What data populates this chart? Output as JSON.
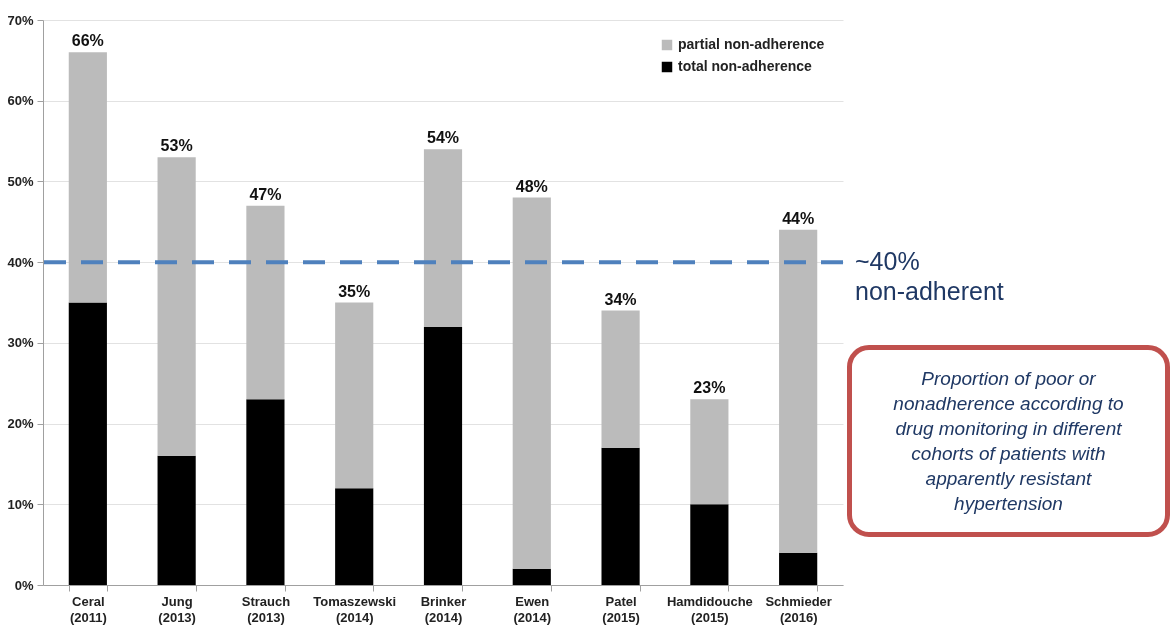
{
  "chart_data": {
    "type": "bar",
    "stacked": true,
    "categories": [
      "Ceral\n(2011)",
      "Jung\n(2013)",
      "Strauch\n(2013)",
      "Tomaszewski\n(2014)",
      "Brinker\n(2014)",
      "Ewen\n(2014)",
      "Patel\n(2015)",
      "Hamdidouche\n(2015)",
      "Schmieder\n(2016)"
    ],
    "series": [
      {
        "name": "total non-adherence",
        "color": "#000000",
        "values": [
          35,
          16,
          23,
          12,
          32,
          2,
          17,
          10,
          4
        ]
      },
      {
        "name": "partial non-adherence",
        "color": "#bbbbbb",
        "values": [
          31,
          37,
          24,
          23,
          22,
          46,
          17,
          13,
          40
        ]
      }
    ],
    "totals": [
      "66%",
      "53%",
      "47%",
      "35%",
      "54%",
      "48%",
      "34%",
      "23%",
      "44%"
    ],
    "ylim": [
      0,
      70
    ],
    "yticks": [
      {
        "value": 0,
        "label": "0%"
      },
      {
        "value": 10,
        "label": "10%"
      },
      {
        "value": 20,
        "label": "20%"
      },
      {
        "value": 30,
        "label": "30%"
      },
      {
        "value": 40,
        "label": "40%"
      },
      {
        "value": 50,
        "label": "50%"
      },
      {
        "value": 60,
        "label": "60%"
      },
      {
        "value": 70,
        "label": "70%"
      }
    ],
    "grid": "y",
    "legend": "top right",
    "ref_lines": [
      {
        "axis": "y",
        "value": 40,
        "label": "~40%\nnon-adherent",
        "color": "#4f81bd",
        "line_style": "dashed"
      }
    ],
    "annotations": [
      "Proportion of poor or nonadherence according to drug monitoring in different cohorts of patients with apparently resistant hypertension"
    ]
  }
}
